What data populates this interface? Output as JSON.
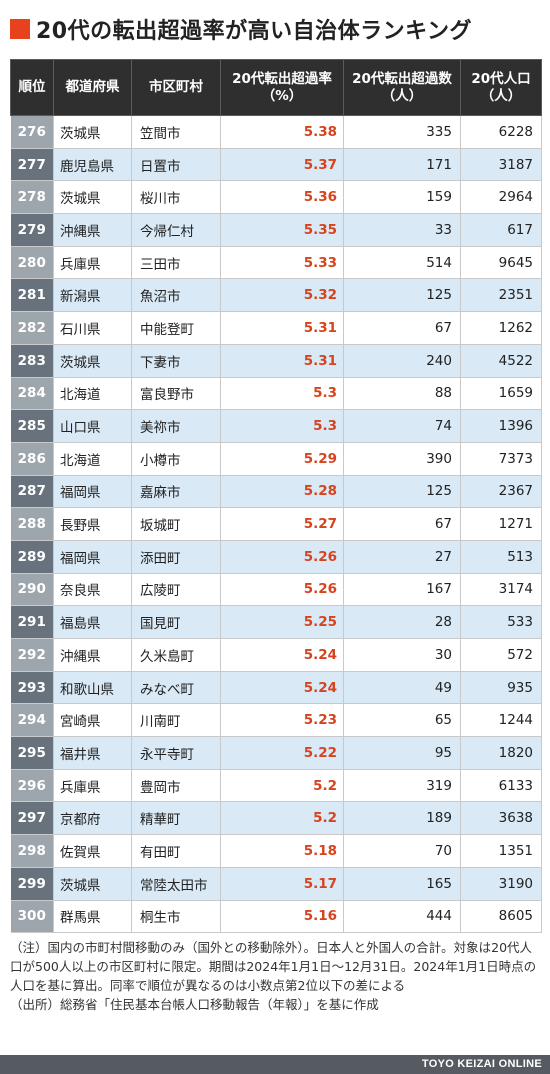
{
  "title": "20代の転出超過率が高い自治体ランキング",
  "headers": {
    "rank": "順位",
    "pref": "都道府県",
    "city": "市区町村",
    "rate": "20代転出超過率（%）",
    "num": "20代転出超過数（人）",
    "pop": "20代人口（人）"
  },
  "rows": [
    {
      "rank": "276",
      "pref": "茨城県",
      "city": "笠間市",
      "rate": "5.38",
      "num": "335",
      "pop": "6228"
    },
    {
      "rank": "277",
      "pref": "鹿児島県",
      "city": "日置市",
      "rate": "5.37",
      "num": "171",
      "pop": "3187"
    },
    {
      "rank": "278",
      "pref": "茨城県",
      "city": "桜川市",
      "rate": "5.36",
      "num": "159",
      "pop": "2964"
    },
    {
      "rank": "279",
      "pref": "沖縄県",
      "city": "今帰仁村",
      "rate": "5.35",
      "num": "33",
      "pop": "617"
    },
    {
      "rank": "280",
      "pref": "兵庫県",
      "city": "三田市",
      "rate": "5.33",
      "num": "514",
      "pop": "9645"
    },
    {
      "rank": "281",
      "pref": "新潟県",
      "city": "魚沼市",
      "rate": "5.32",
      "num": "125",
      "pop": "2351"
    },
    {
      "rank": "282",
      "pref": "石川県",
      "city": "中能登町",
      "rate": "5.31",
      "num": "67",
      "pop": "1262"
    },
    {
      "rank": "283",
      "pref": "茨城県",
      "city": "下妻市",
      "rate": "5.31",
      "num": "240",
      "pop": "4522"
    },
    {
      "rank": "284",
      "pref": "北海道",
      "city": "富良野市",
      "rate": "5.3",
      "num": "88",
      "pop": "1659"
    },
    {
      "rank": "285",
      "pref": "山口県",
      "city": "美祢市",
      "rate": "5.3",
      "num": "74",
      "pop": "1396"
    },
    {
      "rank": "286",
      "pref": "北海道",
      "city": "小樽市",
      "rate": "5.29",
      "num": "390",
      "pop": "7373"
    },
    {
      "rank": "287",
      "pref": "福岡県",
      "city": "嘉麻市",
      "rate": "5.28",
      "num": "125",
      "pop": "2367"
    },
    {
      "rank": "288",
      "pref": "長野県",
      "city": "坂城町",
      "rate": "5.27",
      "num": "67",
      "pop": "1271"
    },
    {
      "rank": "289",
      "pref": "福岡県",
      "city": "添田町",
      "rate": "5.26",
      "num": "27",
      "pop": "513"
    },
    {
      "rank": "290",
      "pref": "奈良県",
      "city": "広陵町",
      "rate": "5.26",
      "num": "167",
      "pop": "3174"
    },
    {
      "rank": "291",
      "pref": "福島県",
      "city": "国見町",
      "rate": "5.25",
      "num": "28",
      "pop": "533"
    },
    {
      "rank": "292",
      "pref": "沖縄県",
      "city": "久米島町",
      "rate": "5.24",
      "num": "30",
      "pop": "572"
    },
    {
      "rank": "293",
      "pref": "和歌山県",
      "city": "みなべ町",
      "rate": "5.24",
      "num": "49",
      "pop": "935"
    },
    {
      "rank": "294",
      "pref": "宮崎県",
      "city": "川南町",
      "rate": "5.23",
      "num": "65",
      "pop": "1244"
    },
    {
      "rank": "295",
      "pref": "福井県",
      "city": "永平寺町",
      "rate": "5.22",
      "num": "95",
      "pop": "1820"
    },
    {
      "rank": "296",
      "pref": "兵庫県",
      "city": "豊岡市",
      "rate": "5.2",
      "num": "319",
      "pop": "6133"
    },
    {
      "rank": "297",
      "pref": "京都府",
      "city": "精華町",
      "rate": "5.2",
      "num": "189",
      "pop": "3638"
    },
    {
      "rank": "298",
      "pref": "佐賀県",
      "city": "有田町",
      "rate": "5.18",
      "num": "70",
      "pop": "1351"
    },
    {
      "rank": "299",
      "pref": "茨城県",
      "city": "常陸太田市",
      "rate": "5.17",
      "num": "165",
      "pop": "3190"
    },
    {
      "rank": "300",
      "pref": "群馬県",
      "city": "桐生市",
      "rate": "5.16",
      "num": "444",
      "pop": "8605"
    }
  ],
  "notes": {
    "note": "（注）国内の市町村間移動のみ（国外との移動除外）。日本人と外国人の合計。対象は20代人口が500人以上の市区町村に限定。期間は2024年1月1日～12月31日。2024年1月1日時点の人口を基に算出。同率で順位が異なるのは小数点第2位以下の差による",
    "source": "（出所）総務省「住民基本台帳人口移動報告（年報）」を基に作成"
  },
  "footer": "TOYO KEIZAI ONLINE",
  "colors": {
    "accent": "#e8411e",
    "header_bg": "#2f2f2f",
    "row_alt_bg": "#d9e9f6",
    "rate_text": "#d6431d"
  }
}
